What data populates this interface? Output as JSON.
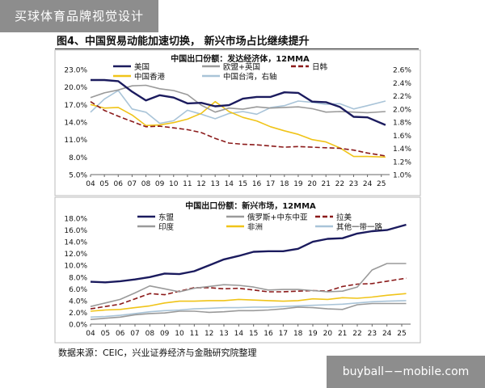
{
  "watermark": {
    "top": "买球体育品牌视觉设计",
    "bottom": "buyball−−mobile.com"
  },
  "figure": {
    "title": "图4、中国贸易动能加速切换，   新兴市场占比继续提升",
    "source": "数据来源：CEIC，兴业证券经济与金融研究院整理"
  },
  "chart_data": [
    {
      "type": "line",
      "title": "中国出口份额：发达经济体，12MMA",
      "x_ticks": [
        "04",
        "05",
        "06",
        "07",
        "08",
        "09",
        "10",
        "11",
        "12",
        "13",
        "14",
        "15",
        "16",
        "17",
        "18",
        "19",
        "20",
        "21",
        "22",
        "23",
        "24",
        "25"
      ],
      "y_left": {
        "ticks": [
          "5.0%",
          "8.0%",
          "11.0%",
          "14.0%",
          "17.0%",
          "20.0%",
          "23.0%"
        ],
        "lim": [
          5,
          23
        ]
      },
      "y_right": {
        "ticks": [
          "1.0%",
          "1.2%",
          "1.4%",
          "1.6%",
          "1.8%",
          "2.0%",
          "2.2%",
          "2.4%",
          "2.6%"
        ],
        "lim": [
          1.0,
          2.6
        ]
      },
      "legend": [
        {
          "name": "美国",
          "color": "#1b1b5e",
          "dash": ""
        },
        {
          "name": "欧盟+英国",
          "color": "#9a9a9a",
          "dash": ""
        },
        {
          "name": "日韩",
          "color": "#8b1a1a",
          "dash": "6,3"
        },
        {
          "name": "中国香港",
          "color": "#f0c419",
          "dash": ""
        },
        {
          "name": "中国台湾，右轴",
          "color": "#a9c4d8",
          "dash": ""
        }
      ],
      "series": [
        {
          "name": "美国",
          "color": "#1b1b5e",
          "width": 2.4,
          "dash": "",
          "axis": "left",
          "x": [
            2004,
            2005,
            2006,
            2007,
            2008,
            2009,
            2010,
            2011,
            2012,
            2013,
            2014,
            2015,
            2016,
            2017,
            2018,
            2019,
            2020,
            2021,
            2022,
            2023,
            2024,
            2025.3
          ],
          "values": [
            21.2,
            21.2,
            21.0,
            19.2,
            17.7,
            18.6,
            18.2,
            17.2,
            17.3,
            16.7,
            16.9,
            18.0,
            18.3,
            18.3,
            19.1,
            19.0,
            17.5,
            17.4,
            16.6,
            14.9,
            14.8,
            13.5
          ]
        },
        {
          "name": "欧盟+英国",
          "color": "#9a9a9a",
          "width": 1.6,
          "dash": "",
          "axis": "left",
          "x": [
            2004,
            2005,
            2006,
            2007,
            2008,
            2009,
            2010,
            2011,
            2012,
            2013,
            2014,
            2015,
            2016,
            2017,
            2018,
            2019,
            2020,
            2021,
            2022,
            2023,
            2024,
            2025.3
          ],
          "values": [
            18.2,
            19.0,
            19.5,
            20.2,
            20.3,
            19.7,
            19.4,
            18.7,
            16.9,
            15.7,
            16.4,
            16.2,
            16.6,
            16.4,
            16.5,
            16.6,
            16.3,
            15.7,
            15.8,
            15.7,
            15.6,
            15.8
          ]
        },
        {
          "name": "日韩",
          "color": "#8b1a1a",
          "width": 1.6,
          "dash": "6,3",
          "axis": "left",
          "x": [
            2004,
            2005,
            2006,
            2007,
            2008,
            2009,
            2010,
            2011,
            2012,
            2013,
            2014,
            2015,
            2016,
            2017,
            2018,
            2019,
            2020,
            2021,
            2022,
            2023,
            2024,
            2025.3
          ],
          "values": [
            17.5,
            16.0,
            15.0,
            14.1,
            13.2,
            13.3,
            13.0,
            12.7,
            12.2,
            11.2,
            10.4,
            10.2,
            10.1,
            9.9,
            9.7,
            9.8,
            9.7,
            9.6,
            9.5,
            9.2,
            8.7,
            8.2
          ]
        },
        {
          "name": "中国香港",
          "color": "#f0c419",
          "width": 1.6,
          "dash": "",
          "axis": "left",
          "x": [
            2004,
            2005,
            2006,
            2007,
            2008,
            2009,
            2010,
            2011,
            2012,
            2013,
            2014,
            2015,
            2016,
            2017,
            2018,
            2019,
            2020,
            2021,
            2022,
            2023,
            2024,
            2025.3
          ],
          "values": [
            17.0,
            16.4,
            16.5,
            15.2,
            13.4,
            13.5,
            13.9,
            14.5,
            15.5,
            17.5,
            15.8,
            14.8,
            14.2,
            13.2,
            12.5,
            11.9,
            11.0,
            10.6,
            9.6,
            8.1,
            8.1,
            8.0
          ]
        },
        {
          "name": "中国台湾，右轴",
          "color": "#a9c4d8",
          "width": 1.6,
          "dash": "",
          "axis": "right",
          "x": [
            2004,
            2005,
            2006,
            2007,
            2008,
            2009,
            2010,
            2011,
            2012,
            2013,
            2014,
            2015,
            2016,
            2017,
            2018,
            2019,
            2020,
            2021,
            2022,
            2023,
            2024,
            2025.3
          ],
          "values": [
            1.95,
            2.15,
            2.28,
            2.0,
            1.95,
            1.78,
            1.82,
            1.98,
            1.92,
            1.85,
            1.93,
            1.96,
            1.92,
            2.02,
            2.05,
            2.12,
            2.1,
            2.07,
            2.08,
            2.0,
            2.05,
            2.12
          ]
        }
      ]
    },
    {
      "type": "line",
      "title": "中国出口份额：新兴市场，12MMA",
      "x_ticks": [
        "04",
        "05",
        "06",
        "07",
        "08",
        "09",
        "10",
        "11",
        "12",
        "13",
        "14",
        "15",
        "16",
        "17",
        "18",
        "19",
        "20",
        "21",
        "22",
        "23",
        "24",
        "25"
      ],
      "y_left": {
        "ticks": [
          "0.0%",
          "2.0%",
          "4.0%",
          "6.0%",
          "8.0%",
          "10.0%",
          "12.0%",
          "14.0%",
          "16.0%",
          "18.0%"
        ],
        "lim": [
          0,
          18
        ]
      },
      "legend": [
        {
          "name": "东盟",
          "color": "#1b1b5e",
          "dash": ""
        },
        {
          "name": "俄罗斯+中东中亚",
          "color": "#9a9a9a",
          "dash": ""
        },
        {
          "name": "拉美",
          "color": "#8b1a1a",
          "dash": "6,3"
        },
        {
          "name": "印度",
          "color": "#9a9a9a",
          "dash": ""
        },
        {
          "name": "非洲",
          "color": "#f0c419",
          "dash": ""
        },
        {
          "name": "其他一带一路",
          "color": "#a9c4d8",
          "dash": ""
        }
      ],
      "series": [
        {
          "name": "东盟",
          "color": "#1b1b5e",
          "width": 2.4,
          "dash": "",
          "axis": "left",
          "x": [
            2004,
            2005,
            2006,
            2007,
            2008,
            2009,
            2010,
            2011,
            2012,
            2013,
            2014,
            2015,
            2016,
            2017,
            2018,
            2019,
            2020,
            2021,
            2022,
            2023,
            2024,
            2025.3
          ],
          "values": [
            7.2,
            7.1,
            7.3,
            7.6,
            8.0,
            8.6,
            8.5,
            9.0,
            10.0,
            11.0,
            11.6,
            12.3,
            12.4,
            12.4,
            12.8,
            14.0,
            14.5,
            14.6,
            15.4,
            15.8,
            16.0,
            16.9
          ]
        },
        {
          "name": "俄罗斯+中东中亚",
          "color": "#9a9a9a",
          "width": 1.6,
          "dash": "",
          "axis": "left",
          "x": [
            2004,
            2005,
            2006,
            2007,
            2008,
            2009,
            2010,
            2011,
            2012,
            2013,
            2014,
            2015,
            2016,
            2017,
            2018,
            2019,
            2020,
            2021,
            2022,
            2023,
            2024,
            2025.3
          ],
          "values": [
            3.0,
            3.6,
            4.2,
            5.3,
            6.5,
            6.0,
            5.5,
            6.1,
            6.4,
            6.7,
            6.6,
            6.3,
            5.8,
            5.9,
            5.9,
            5.7,
            5.5,
            5.6,
            6.3,
            9.2,
            10.3,
            10.3
          ]
        },
        {
          "name": "拉美",
          "color": "#8b1a1a",
          "width": 1.6,
          "dash": "6,3",
          "axis": "left",
          "x": [
            2004,
            2005,
            2006,
            2007,
            2008,
            2009,
            2010,
            2011,
            2012,
            2013,
            2014,
            2015,
            2016,
            2017,
            2018,
            2019,
            2020,
            2021,
            2022,
            2023,
            2024,
            2025.3
          ],
          "values": [
            2.6,
            3.0,
            3.4,
            4.3,
            5.2,
            5.0,
            5.6,
            6.2,
            6.2,
            6.0,
            6.1,
            5.8,
            5.5,
            5.5,
            5.6,
            5.7,
            5.6,
            6.4,
            6.8,
            6.9,
            7.3,
            7.8
          ]
        },
        {
          "name": "印度",
          "color": "#9a9a9a",
          "width": 1.6,
          "dash": "",
          "axis": "left",
          "x": [
            2004,
            2005,
            2006,
            2007,
            2008,
            2009,
            2010,
            2011,
            2012,
            2013,
            2014,
            2015,
            2016,
            2017,
            2018,
            2019,
            2020,
            2021,
            2022,
            2023,
            2024,
            2025.3
          ],
          "values": [
            0.8,
            1.0,
            1.2,
            1.6,
            1.8,
            1.9,
            2.2,
            2.2,
            2.0,
            2.1,
            2.3,
            2.3,
            2.4,
            2.6,
            2.9,
            2.8,
            2.6,
            2.5,
            3.3,
            3.5,
            3.5,
            3.5
          ]
        },
        {
          "name": "非洲",
          "color": "#f0c419",
          "width": 1.6,
          "dash": "",
          "axis": "left",
          "x": [
            2004,
            2005,
            2006,
            2007,
            2008,
            2009,
            2010,
            2011,
            2012,
            2013,
            2014,
            2015,
            2016,
            2017,
            2018,
            2019,
            2020,
            2021,
            2022,
            2023,
            2024,
            2025.3
          ],
          "values": [
            2.2,
            2.4,
            2.5,
            2.8,
            3.1,
            3.6,
            3.9,
            3.9,
            4.0,
            4.0,
            4.2,
            4.1,
            4.0,
            3.9,
            4.0,
            4.3,
            4.2,
            4.5,
            4.4,
            4.6,
            4.9,
            5.2
          ]
        },
        {
          "name": "其他一带一路",
          "color": "#a9c4d8",
          "width": 1.6,
          "dash": "",
          "axis": "left",
          "x": [
            2004,
            2005,
            2006,
            2007,
            2008,
            2009,
            2010,
            2011,
            2012,
            2013,
            2014,
            2015,
            2016,
            2017,
            2018,
            2019,
            2020,
            2021,
            2022,
            2023,
            2024,
            2025.3
          ],
          "values": [
            1.2,
            1.3,
            1.5,
            1.8,
            2.1,
            2.3,
            2.4,
            2.6,
            2.7,
            2.8,
            2.8,
            2.9,
            2.9,
            3.0,
            3.1,
            3.2,
            3.3,
            3.4,
            3.6,
            3.8,
            3.9,
            4.0
          ]
        }
      ]
    }
  ]
}
